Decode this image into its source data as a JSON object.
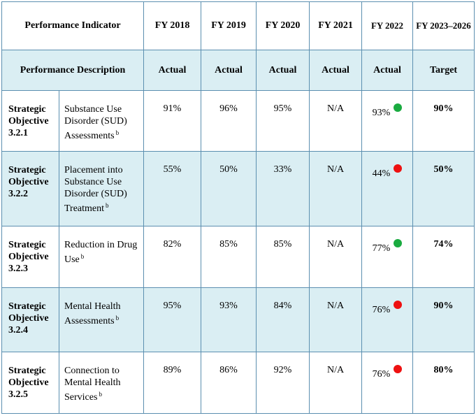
{
  "header": {
    "indicator_label": "Performance Indicator",
    "years": [
      "FY 2018",
      "FY 2019",
      "FY 2020",
      "FY 2021",
      "FY 2022",
      "FY 2023–2026"
    ],
    "description_label": "Performance Description",
    "subheaders": [
      "Actual",
      "Actual",
      "Actual",
      "Actual",
      "Actual",
      "Target"
    ]
  },
  "status_colors": {
    "met": "#1aab40",
    "not_met": "#ee1111"
  },
  "rows": [
    {
      "objective": [
        "Strategic",
        "Objective",
        "3.2.1"
      ],
      "description": "Substance Use Disorder (SUD) Assessments",
      "footnote": "b",
      "fy2018": "91%",
      "fy2019": "96%",
      "fy2020": "95%",
      "fy2021": "N/A",
      "fy2022": "93%",
      "fy2022_status": "met",
      "target": "90%"
    },
    {
      "objective": [
        "Strategic",
        "Objective",
        "3.2.2"
      ],
      "description": "Placement into Substance Use Disorder (SUD) Treatment",
      "footnote": "b",
      "fy2018": "55%",
      "fy2019": "50%",
      "fy2020": "33%",
      "fy2021": "N/A",
      "fy2022": "44%",
      "fy2022_status": "not_met",
      "target": "50%"
    },
    {
      "objective": [
        "Strategic",
        "Objective",
        "3.2.3"
      ],
      "description": "Reduction in Drug Use",
      "footnote": "b",
      "fy2018": "82%",
      "fy2019": "85%",
      "fy2020": "85%",
      "fy2021": "N/A",
      "fy2022": "77%",
      "fy2022_status": "met",
      "target": "74%"
    },
    {
      "objective": [
        "Strategic",
        "Objective",
        "3.2.4"
      ],
      "description": "Mental Health Assessments",
      "footnote": "b",
      "fy2018": "95%",
      "fy2019": "93%",
      "fy2020": "84%",
      "fy2021": "N/A",
      "fy2022": "76%",
      "fy2022_status": "not_met",
      "target": "90%"
    },
    {
      "objective": [
        "Strategic",
        "Objective",
        "3.2.5"
      ],
      "description": "Connection to Mental Health Services",
      "footnote": "b",
      "fy2018": "89%",
      "fy2019": "86%",
      "fy2020": "92%",
      "fy2021": "N/A",
      "fy2022": "76%",
      "fy2022_status": "not_met",
      "target": "80%"
    }
  ]
}
